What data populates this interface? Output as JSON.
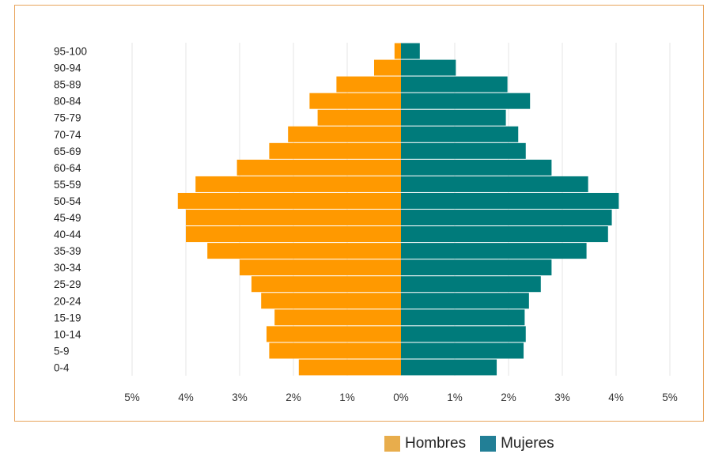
{
  "chart_data": {
    "type": "bar",
    "orientation": "horizontal-population-pyramid",
    "categories": [
      "95-100",
      "90-94",
      "85-89",
      "80-84",
      "75-79",
      "70-74",
      "65-69",
      "60-64",
      "55-59",
      "50-54",
      "45-49",
      "40-44",
      "35-39",
      "30-34",
      "25-29",
      "20-24",
      "15-19",
      "10-14",
      "5-9",
      "0-4"
    ],
    "series": [
      {
        "name": "Hombres",
        "color": "#ff9900",
        "values": [
          -0.12,
          -0.5,
          -1.2,
          -1.7,
          -1.55,
          -2.1,
          -2.45,
          -3.05,
          -3.82,
          -4.15,
          -4.0,
          -4.0,
          -3.6,
          -3.0,
          -2.78,
          -2.6,
          -2.35,
          -2.5,
          -2.45,
          -1.9
        ]
      },
      {
        "name": "Mujeres",
        "color": "#007b7b",
        "values": [
          0.35,
          1.02,
          1.98,
          2.4,
          1.95,
          2.18,
          2.32,
          2.8,
          3.48,
          4.05,
          3.92,
          3.85,
          3.45,
          2.8,
          2.6,
          2.38,
          2.3,
          2.32,
          2.28,
          1.78
        ]
      }
    ],
    "xticks": [
      "5%",
      "4%",
      "3%",
      "2%",
      "1%",
      "0%",
      "1%",
      "2%",
      "3%",
      "4%",
      "5%"
    ],
    "xlim": [
      -5,
      5
    ],
    "grid": true,
    "legend": {
      "placement": "bottom-right",
      "items": [
        {
          "label": "Hombres",
          "color": "#e8ad4c"
        },
        {
          "label": "Mujeres",
          "color": "#227f96"
        }
      ]
    }
  }
}
